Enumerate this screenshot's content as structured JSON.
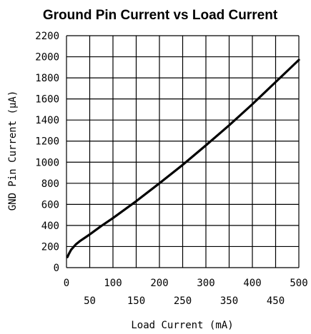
{
  "chart_data": {
    "type": "line",
    "title": "Ground Pin Current vs Load Current",
    "xlabel": "Load Current (mA)",
    "ylabel": "GND Pin Current (µA)",
    "xlim": [
      0,
      500
    ],
    "ylim": [
      0,
      2200
    ],
    "grid": true,
    "x_ticks": [
      0,
      50,
      100,
      150,
      200,
      250,
      300,
      350,
      400,
      450,
      500
    ],
    "x_tick_labels": [
      "0",
      "50",
      "100",
      "150",
      "200",
      "250",
      "300",
      "350",
      "400",
      "450",
      "500"
    ],
    "y_ticks": [
      0,
      200,
      400,
      600,
      800,
      1000,
      1200,
      1400,
      1600,
      1800,
      2000,
      2200
    ],
    "y_tick_labels": [
      "0",
      "200",
      "400",
      "600",
      "800",
      "1000",
      "1200",
      "1400",
      "1600",
      "1800",
      "2000",
      "2200"
    ],
    "series": [
      {
        "color": "#000000",
        "x": [
          2,
          5,
          10,
          20,
          30,
          50,
          75,
          100,
          150,
          200,
          250,
          300,
          350,
          400,
          450,
          500
        ],
        "y": [
          100,
          130,
          170,
          220,
          255,
          315,
          395,
          470,
          630,
          800,
          975,
          1160,
          1350,
          1550,
          1760,
          1970
        ]
      }
    ]
  }
}
